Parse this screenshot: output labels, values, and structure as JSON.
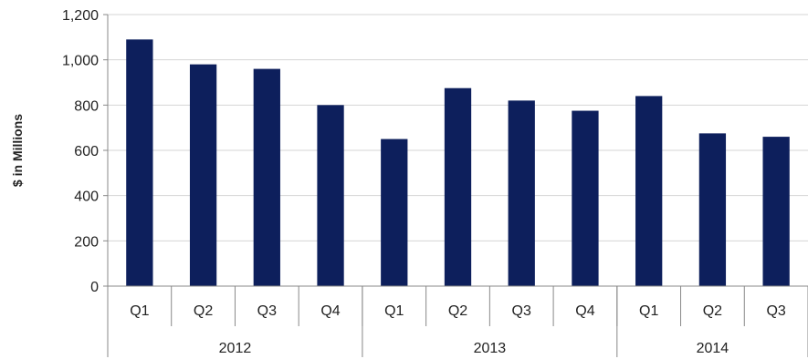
{
  "chart_data": {
    "type": "bar",
    "categories": [
      "Q1",
      "Q2",
      "Q3",
      "Q4",
      "Q1",
      "Q2",
      "Q3",
      "Q4",
      "Q1",
      "Q2",
      "Q3"
    ],
    "groups": [
      {
        "label": "2012",
        "count": 4
      },
      {
        "label": "2013",
        "count": 4
      },
      {
        "label": "2014",
        "count": 3
      }
    ],
    "values": [
      1090,
      980,
      960,
      800,
      650,
      875,
      820,
      775,
      840,
      675,
      660
    ],
    "title": "",
    "xlabel": "",
    "ylabel": "$ in Millions",
    "ylim": [
      0,
      1200
    ],
    "yticks": [
      0,
      200,
      400,
      600,
      800,
      1000,
      1200
    ],
    "ytick_labels": [
      "0",
      "200",
      "400",
      "600",
      "800",
      "1,000",
      "1,200"
    ],
    "grid": true,
    "bar_color": "#0d1f5c",
    "grid_color": "#d4d4d4"
  }
}
